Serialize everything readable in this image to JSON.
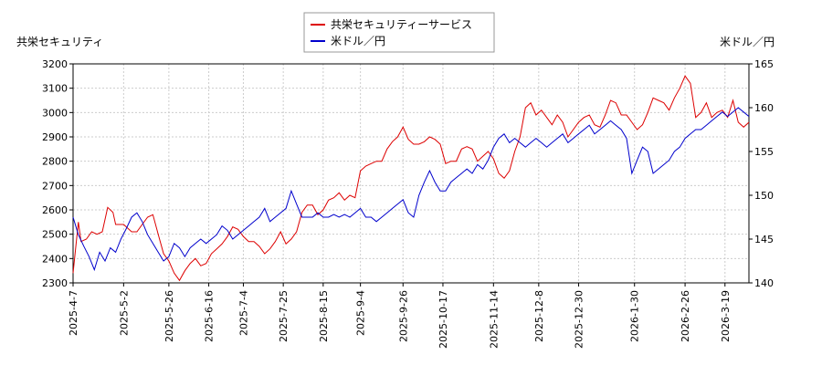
{
  "chart_data": {
    "type": "line",
    "left_axis_title": "共栄セキュリティ",
    "right_axis_title": "米ドル／円",
    "legend": {
      "placement": "top-center"
    },
    "left_axis": {
      "min": 2300,
      "max": 3200,
      "ticks": [
        2300,
        2400,
        2500,
        2600,
        2700,
        2800,
        2900,
        3000,
        3100,
        3200
      ]
    },
    "right_axis": {
      "min": 140,
      "max": 165,
      "ticks": [
        140,
        145,
        150,
        155,
        160,
        165
      ]
    },
    "grid": true,
    "x_tick_labels": [
      "2025-4-7",
      "2025-5-2",
      "2025-5-26",
      "2025-6-16",
      "2025-7-4",
      "2025-7-25",
      "2025-8-15",
      "2025-9-4",
      "2025-9-26",
      "2025-10-17",
      "2025-11-14",
      "2025-12-8",
      "2025-12-30",
      "2026-1-30",
      "2026-2-26",
      "2026-3-19"
    ],
    "x_tick_index": [
      0,
      19,
      36,
      51,
      64,
      79,
      94,
      108,
      124,
      139,
      158,
      175,
      190,
      211,
      230,
      245
    ],
    "x_count": 255,
    "series": [
      {
        "name": "共栄セキュリティーサービス",
        "axis": "left",
        "color": "#dd0000",
        "points": [
          [
            0,
            2340
          ],
          [
            2,
            2550
          ],
          [
            3,
            2470
          ],
          [
            5,
            2480
          ],
          [
            7,
            2510
          ],
          [
            9,
            2500
          ],
          [
            11,
            2510
          ],
          [
            13,
            2610
          ],
          [
            15,
            2590
          ],
          [
            16,
            2540
          ],
          [
            19,
            2540
          ],
          [
            22,
            2510
          ],
          [
            24,
            2510
          ],
          [
            26,
            2540
          ],
          [
            28,
            2570
          ],
          [
            30,
            2580
          ],
          [
            32,
            2500
          ],
          [
            34,
            2420
          ],
          [
            36,
            2390
          ],
          [
            38,
            2340
          ],
          [
            40,
            2310
          ],
          [
            42,
            2350
          ],
          [
            44,
            2380
          ],
          [
            46,
            2400
          ],
          [
            48,
            2370
          ],
          [
            50,
            2380
          ],
          [
            52,
            2420
          ],
          [
            54,
            2440
          ],
          [
            56,
            2460
          ],
          [
            58,
            2490
          ],
          [
            60,
            2530
          ],
          [
            62,
            2520
          ],
          [
            64,
            2490
          ],
          [
            66,
            2470
          ],
          [
            68,
            2470
          ],
          [
            70,
            2450
          ],
          [
            72,
            2420
          ],
          [
            74,
            2440
          ],
          [
            76,
            2470
          ],
          [
            78,
            2510
          ],
          [
            80,
            2460
          ],
          [
            82,
            2480
          ],
          [
            84,
            2510
          ],
          [
            86,
            2590
          ],
          [
            88,
            2620
          ],
          [
            90,
            2620
          ],
          [
            92,
            2580
          ],
          [
            94,
            2600
          ],
          [
            96,
            2640
          ],
          [
            98,
            2650
          ],
          [
            100,
            2670
          ],
          [
            102,
            2640
          ],
          [
            104,
            2660
          ],
          [
            106,
            2650
          ],
          [
            108,
            2760
          ],
          [
            110,
            2780
          ],
          [
            112,
            2790
          ],
          [
            114,
            2800
          ],
          [
            116,
            2800
          ],
          [
            118,
            2850
          ],
          [
            120,
            2880
          ],
          [
            122,
            2900
          ],
          [
            124,
            2940
          ],
          [
            126,
            2890
          ],
          [
            128,
            2870
          ],
          [
            130,
            2870
          ],
          [
            132,
            2880
          ],
          [
            134,
            2900
          ],
          [
            136,
            2890
          ],
          [
            138,
            2870
          ],
          [
            140,
            2790
          ],
          [
            142,
            2800
          ],
          [
            144,
            2800
          ],
          [
            146,
            2850
          ],
          [
            148,
            2860
          ],
          [
            150,
            2850
          ],
          [
            152,
            2800
          ],
          [
            154,
            2820
          ],
          [
            156,
            2840
          ],
          [
            158,
            2810
          ],
          [
            160,
            2750
          ],
          [
            162,
            2730
          ],
          [
            164,
            2760
          ],
          [
            166,
            2840
          ],
          [
            168,
            2900
          ],
          [
            170,
            3020
          ],
          [
            172,
            3040
          ],
          [
            174,
            2990
          ],
          [
            176,
            3010
          ],
          [
            178,
            2980
          ],
          [
            180,
            2950
          ],
          [
            182,
            2990
          ],
          [
            184,
            2960
          ],
          [
            186,
            2900
          ],
          [
            188,
            2930
          ],
          [
            190,
            2960
          ],
          [
            192,
            2980
          ],
          [
            194,
            2990
          ],
          [
            196,
            2950
          ],
          [
            198,
            2940
          ],
          [
            200,
            2990
          ],
          [
            202,
            3050
          ],
          [
            204,
            3040
          ],
          [
            206,
            2990
          ],
          [
            208,
            2990
          ],
          [
            210,
            2960
          ],
          [
            212,
            2930
          ],
          [
            214,
            2950
          ],
          [
            216,
            3000
          ],
          [
            218,
            3060
          ],
          [
            220,
            3050
          ],
          [
            222,
            3040
          ],
          [
            224,
            3010
          ],
          [
            226,
            3060
          ],
          [
            228,
            3100
          ],
          [
            230,
            3150
          ],
          [
            232,
            3120
          ],
          [
            234,
            2980
          ],
          [
            236,
            3000
          ],
          [
            238,
            3040
          ],
          [
            240,
            2980
          ],
          [
            242,
            3000
          ],
          [
            244,
            3010
          ],
          [
            246,
            2980
          ],
          [
            248,
            3050
          ],
          [
            250,
            2960
          ],
          [
            252,
            2940
          ],
          [
            254,
            2960
          ]
        ]
      },
      {
        "name": "米ドル／円",
        "axis": "right",
        "color": "#0000cc",
        "points": [
          [
            0,
            147.5
          ],
          [
            2,
            145.5
          ],
          [
            4,
            144.2
          ],
          [
            6,
            143.0
          ],
          [
            8,
            141.5
          ],
          [
            10,
            143.5
          ],
          [
            12,
            142.5
          ],
          [
            14,
            144.0
          ],
          [
            16,
            143.5
          ],
          [
            18,
            145.0
          ],
          [
            20,
            146.2
          ],
          [
            22,
            147.5
          ],
          [
            24,
            148.0
          ],
          [
            26,
            147.0
          ],
          [
            28,
            145.5
          ],
          [
            30,
            144.5
          ],
          [
            32,
            143.5
          ],
          [
            34,
            142.5
          ],
          [
            36,
            143.0
          ],
          [
            38,
            144.5
          ],
          [
            40,
            144.0
          ],
          [
            42,
            143.0
          ],
          [
            44,
            144.0
          ],
          [
            46,
            144.5
          ],
          [
            48,
            145.0
          ],
          [
            50,
            144.5
          ],
          [
            52,
            145.0
          ],
          [
            54,
            145.5
          ],
          [
            56,
            146.5
          ],
          [
            58,
            146.0
          ],
          [
            60,
            145.0
          ],
          [
            62,
            145.5
          ],
          [
            64,
            146.0
          ],
          [
            66,
            146.5
          ],
          [
            68,
            147.0
          ],
          [
            70,
            147.5
          ],
          [
            72,
            148.5
          ],
          [
            74,
            147.0
          ],
          [
            76,
            147.5
          ],
          [
            78,
            148.0
          ],
          [
            80,
            148.5
          ],
          [
            82,
            150.5
          ],
          [
            84,
            149.0
          ],
          [
            86,
            147.5
          ],
          [
            88,
            147.5
          ],
          [
            90,
            147.5
          ],
          [
            92,
            148.0
          ],
          [
            94,
            147.5
          ],
          [
            96,
            147.5
          ],
          [
            98,
            147.8
          ],
          [
            100,
            147.5
          ],
          [
            102,
            147.8
          ],
          [
            104,
            147.5
          ],
          [
            106,
            148.0
          ],
          [
            108,
            148.5
          ],
          [
            110,
            147.5
          ],
          [
            112,
            147.5
          ],
          [
            114,
            147.0
          ],
          [
            116,
            147.5
          ],
          [
            118,
            148.0
          ],
          [
            120,
            148.5
          ],
          [
            122,
            149.0
          ],
          [
            124,
            149.5
          ],
          [
            126,
            148.0
          ],
          [
            128,
            147.5
          ],
          [
            130,
            150.0
          ],
          [
            132,
            151.5
          ],
          [
            134,
            152.8
          ],
          [
            136,
            151.5
          ],
          [
            138,
            150.5
          ],
          [
            140,
            150.5
          ],
          [
            142,
            151.5
          ],
          [
            144,
            152.0
          ],
          [
            146,
            152.5
          ],
          [
            148,
            153.0
          ],
          [
            150,
            152.5
          ],
          [
            152,
            153.5
          ],
          [
            154,
            153.0
          ],
          [
            156,
            154.0
          ],
          [
            158,
            155.5
          ],
          [
            160,
            156.5
          ],
          [
            162,
            157.0
          ],
          [
            164,
            156.0
          ],
          [
            166,
            156.5
          ],
          [
            168,
            156.0
          ],
          [
            170,
            155.5
          ],
          [
            172,
            156.0
          ],
          [
            174,
            156.5
          ],
          [
            176,
            156.0
          ],
          [
            178,
            155.5
          ],
          [
            180,
            156.0
          ],
          [
            182,
            156.5
          ],
          [
            184,
            157.0
          ],
          [
            186,
            156.0
          ],
          [
            188,
            156.5
          ],
          [
            190,
            157.0
          ],
          [
            192,
            157.5
          ],
          [
            194,
            158.0
          ],
          [
            196,
            157.0
          ],
          [
            198,
            157.5
          ],
          [
            200,
            158.0
          ],
          [
            202,
            158.5
          ],
          [
            204,
            158.0
          ],
          [
            206,
            157.5
          ],
          [
            208,
            156.5
          ],
          [
            210,
            152.5
          ],
          [
            212,
            154.0
          ],
          [
            214,
            155.5
          ],
          [
            216,
            155.0
          ],
          [
            218,
            152.5
          ],
          [
            220,
            153.0
          ],
          [
            222,
            153.5
          ],
          [
            224,
            154.0
          ],
          [
            226,
            155.0
          ],
          [
            228,
            155.5
          ],
          [
            230,
            156.5
          ],
          [
            232,
            157.0
          ],
          [
            234,
            157.5
          ],
          [
            236,
            157.5
          ],
          [
            238,
            158.0
          ],
          [
            240,
            158.5
          ],
          [
            242,
            159.0
          ],
          [
            244,
            159.5
          ],
          [
            246,
            159.0
          ],
          [
            248,
            159.5
          ],
          [
            250,
            160.0
          ],
          [
            252,
            159.5
          ],
          [
            254,
            159.0
          ]
        ]
      }
    ]
  }
}
